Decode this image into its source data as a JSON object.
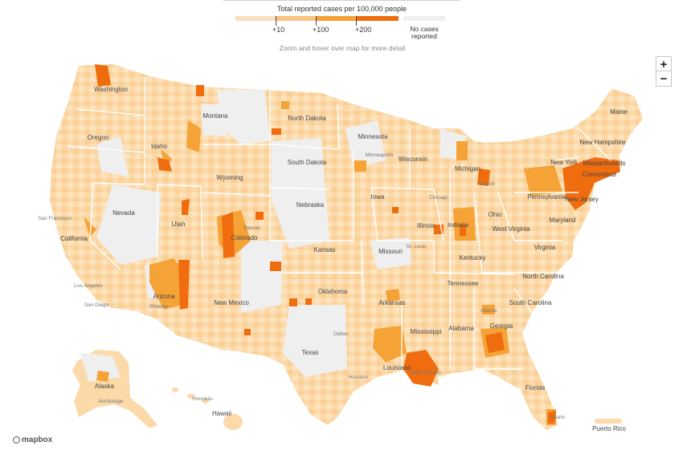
{
  "legend": {
    "title": "Total reported cases per 100,000 people",
    "ticks": [
      "+10",
      "+100",
      "+200"
    ],
    "no_cases_label": "No cases reported",
    "colors": [
      "#f7dfc2",
      "#fbc380",
      "#f5a236",
      "#f06d0f",
      "#efefef"
    ]
  },
  "hint": "Zoom and hover over map for more detail",
  "zoom": {
    "in_label": "+",
    "out_label": "−"
  },
  "attribution": {
    "label": "mapbox"
  },
  "map": {
    "states": [
      "Washington",
      "Oregon",
      "California",
      "Idaho",
      "Nevada",
      "Montana",
      "Wyoming",
      "Utah",
      "Arizona",
      "Colorado",
      "New Mexico",
      "North Dakota",
      "South Dakota",
      "Nebraska",
      "Kansas",
      "Oklahoma",
      "Texas",
      "Minnesota",
      "Iowa",
      "Missouri",
      "Arkansas",
      "Louisiana",
      "Wisconsin",
      "Illinois",
      "Michigan",
      "Indiana",
      "Ohio",
      "Kentucky",
      "Tennessee",
      "Mississippi",
      "Alabama",
      "Georgia",
      "Florida",
      "South Carolina",
      "North Carolina",
      "Virginia",
      "West Virginia",
      "Pennsylvania",
      "New York",
      "Maryland",
      "New Jersey",
      "Connecticut",
      "Massachusetts",
      "New Hampshire",
      "Maine",
      "Alaska",
      "Hawaii",
      "Puerto Rico"
    ],
    "cities": [
      "San Francisco",
      "Los Angeles",
      "San Diego",
      "Phoenix",
      "Denver",
      "Minneapolis",
      "Chicago",
      "St. Louis",
      "Detroit",
      "Dallas",
      "Houston",
      "New Orleans",
      "Atlanta",
      "Miami",
      "Honolulu",
      "Anchorage"
    ]
  }
}
